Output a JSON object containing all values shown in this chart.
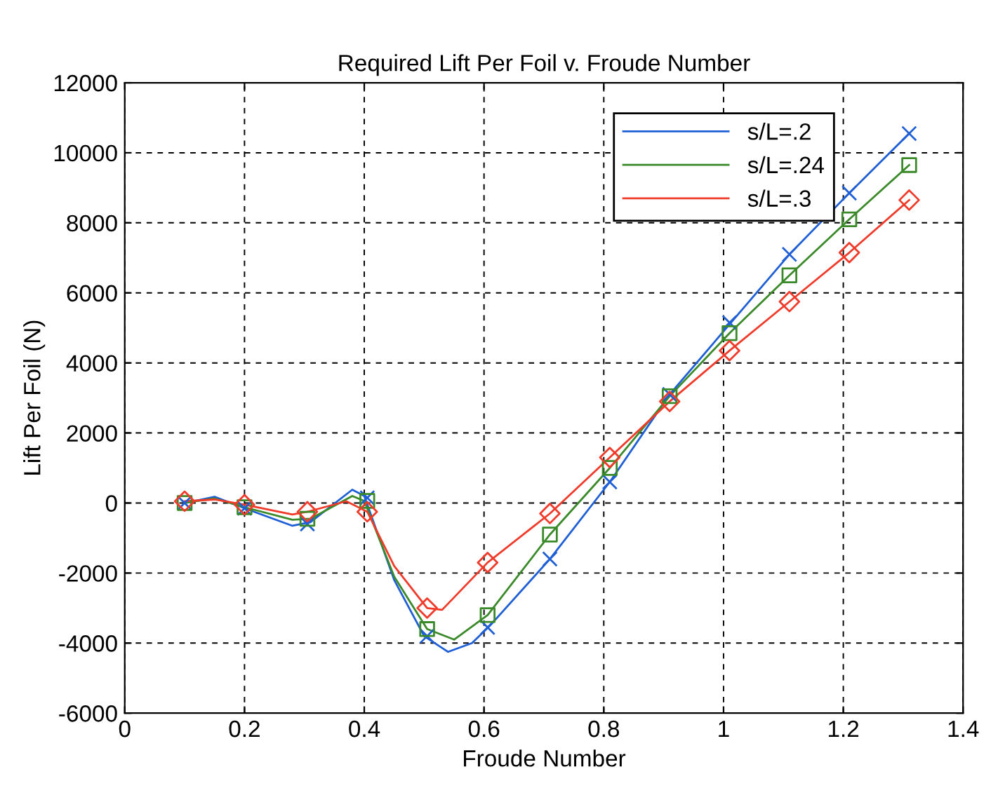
{
  "chart_data": {
    "type": "line",
    "title": "Required Lift Per Foil v. Froude Number",
    "xlabel": "Froude Number",
    "ylabel": "Lift Per Foil (N)",
    "xlim": [
      0,
      1.4
    ],
    "xticks": [
      0,
      0.2,
      0.4,
      0.6,
      0.8,
      1,
      1.2,
      1.4
    ],
    "ylim": [
      -6000,
      12000
    ],
    "yticks": [
      -6000,
      -4000,
      -2000,
      0,
      2000,
      4000,
      6000,
      8000,
      10000,
      12000
    ],
    "grid": true,
    "legend": "top right",
    "line_style": "solid",
    "series": [
      {
        "name": "s/L=.2",
        "color": "#1f5fd6",
        "marker": "none",
        "x": [
          0.1,
          0.15,
          0.2,
          0.28,
          0.31,
          0.38,
          0.4,
          0.45,
          0.5,
          0.54,
          0.58,
          0.61,
          0.71,
          0.81,
          0.91,
          1.01,
          1.11,
          1.21,
          1.31
        ],
        "values": [
          0,
          180,
          -150,
          -650,
          -550,
          380,
          200,
          -2200,
          -3800,
          -4250,
          -4000,
          -3500,
          -1600,
          600,
          3100,
          5100,
          7100,
          8850,
          10550
        ]
      },
      {
        "name": "s/L=.24",
        "color": "#3a8a2a",
        "marker": "none",
        "x": [
          0.1,
          0.15,
          0.2,
          0.28,
          0.31,
          0.38,
          0.4,
          0.45,
          0.505,
          0.55,
          0.606,
          0.71,
          0.81,
          0.91,
          1.01,
          1.11,
          1.21,
          1.31
        ],
        "values": [
          0,
          130,
          -120,
          -480,
          -450,
          200,
          60,
          -2100,
          -3600,
          -3900,
          -3200,
          -900,
          1000,
          3050,
          4850,
          6500,
          8100,
          9650
        ]
      },
      {
        "name": "s/L=.3",
        "color": "#f03a2a",
        "marker": "none",
        "x": [
          0.1,
          0.15,
          0.2,
          0.28,
          0.305,
          0.37,
          0.405,
          0.45,
          0.505,
          0.53,
          0.606,
          0.71,
          0.81,
          0.91,
          1.01,
          1.11,
          1.21,
          1.31
        ],
        "values": [
          50,
          100,
          -50,
          -330,
          -250,
          50,
          -250,
          -1800,
          -3000,
          -3050,
          -1700,
          -300,
          1300,
          2900,
          4350,
          5750,
          7150,
          8650
        ]
      },
      {
        "color": "#1f5fd6",
        "type": "scatter",
        "marker": "cross",
        "x": [
          0.1,
          0.2,
          0.305,
          0.405,
          0.505,
          0.606,
          0.71,
          0.81,
          0.91,
          1.01,
          1.11,
          1.21,
          1.31
        ],
        "values": [
          0,
          -150,
          -600,
          150,
          -3800,
          -3550,
          -1600,
          600,
          3100,
          5150,
          7100,
          8850,
          10550
        ]
      },
      {
        "color": "#3a8a2a",
        "type": "scatter",
        "marker": "square",
        "x": [
          0.1,
          0.2,
          0.305,
          0.405,
          0.505,
          0.606,
          0.71,
          0.81,
          0.91,
          1.01,
          1.11,
          1.21,
          1.31
        ],
        "values": [
          0,
          -120,
          -450,
          60,
          -3600,
          -3200,
          -900,
          1000,
          3050,
          4850,
          6500,
          8100,
          9650
        ]
      },
      {
        "color": "#f03a2a",
        "type": "scatter",
        "marker": "diamond",
        "x": [
          0.1,
          0.2,
          0.305,
          0.405,
          0.505,
          0.606,
          0.71,
          0.81,
          0.91,
          1.01,
          1.11,
          1.21,
          1.31
        ],
        "values": [
          50,
          -50,
          -250,
          -250,
          -3000,
          -1700,
          -300,
          1300,
          2900,
          4350,
          5750,
          7150,
          8650
        ]
      }
    ]
  }
}
